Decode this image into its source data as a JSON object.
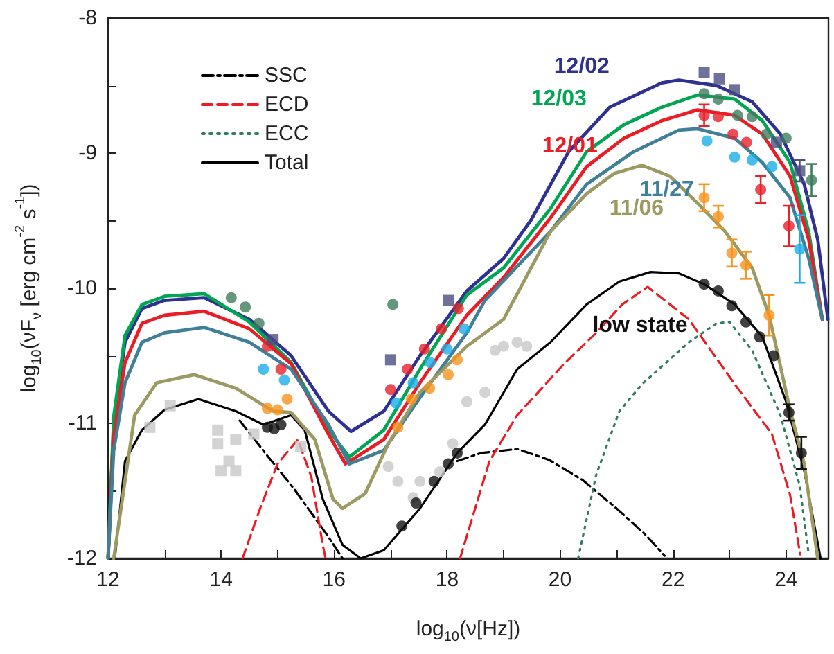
{
  "chart_data": {
    "type": "line",
    "xlabel": "log$_{10}$(ν[Hz])",
    "ylabel": "log$_{10}$(νF$_{ν}$ [erg cm$^{-2}$ s$^{-1}$])",
    "xlim": [
      12,
      24.75
    ],
    "ylim": [
      -12,
      -8
    ],
    "xticks": [
      12,
      {
        "value": 13,
        "label": null
      },
      14,
      {
        "value": 15,
        "label": null
      },
      16,
      {
        "value": 17,
        "label": null
      },
      18,
      {
        "value": 19,
        "label": null
      },
      20,
      {
        "value": 21,
        "label": null
      },
      22,
      {
        "value": 23,
        "label": null
      },
      24
    ],
    "yticks": [
      -12,
      {
        "value": -11.5,
        "label": null
      },
      -11,
      {
        "value": -10.5,
        "label": null
      },
      -10,
      {
        "value": -9.5,
        "label": null
      },
      -9,
      {
        "value": -8.5,
        "label": null
      },
      -8
    ],
    "grid": false,
    "legend": "top left",
    "annotations": [
      "low state"
    ],
    "series": [
      {
        "name": "SSC",
        "type": "line",
        "color": "#000000",
        "line_style": "dashdot",
        "x": [
          14.33,
          14.8,
          15.3,
          15.9,
          16.15,
          17.0,
          18.18,
          18.6,
          19.24,
          19.8,
          20.4,
          21.0,
          21.5,
          21.85
        ],
        "values": [
          -10.98,
          -11.23,
          -11.49,
          -11.84,
          -12.0,
          null,
          -11.28,
          -11.22,
          -11.19,
          -11.27,
          -11.42,
          -11.63,
          -11.82,
          -11.98
        ]
      },
      {
        "name": "ECD",
        "type": "line",
        "color": "#ed1c24",
        "line_style": "dashed",
        "x": [
          14.38,
          14.7,
          15.0,
          15.36,
          15.6,
          15.8,
          15.85,
          17.0,
          18.23,
          18.75,
          19.24,
          20.07,
          20.64,
          21.1,
          21.55,
          22.28,
          23.09,
          23.75,
          24.07,
          24.25
        ],
        "values": [
          -12,
          -11.62,
          -11.3,
          -11.12,
          -11.4,
          -11.9,
          -12,
          null,
          -12,
          -11.28,
          -10.94,
          -10.56,
          -10.33,
          -10.12,
          -9.99,
          -10.23,
          -10.71,
          -11.08,
          -11.53,
          -11.97
        ]
      },
      {
        "name": "ECC",
        "type": "line",
        "color": "#2e7d5e",
        "line_style": "dotted",
        "x": [
          20.32,
          20.64,
          21.05,
          21.45,
          22.28,
          22.77,
          23.0,
          23.4,
          23.9,
          24.24,
          24.4
        ],
        "values": [
          -12,
          -11.38,
          -10.91,
          -10.71,
          -10.4,
          -10.26,
          -10.25,
          -10.46,
          -10.94,
          -11.46,
          -11.97
        ]
      },
      {
        "name": "Total",
        "type": "line",
        "color": "#000000",
        "line_style": "solid",
        "x": [
          12.12,
          12.3,
          12.6,
          13.0,
          13.6,
          14.26,
          14.75,
          15.24,
          15.48,
          15.8,
          16.15,
          16.47,
          16.88,
          17.52,
          18.18,
          18.67,
          19.24,
          19.83,
          20.47,
          21.05,
          21.6,
          22.1,
          22.55,
          23.09,
          23.58,
          24.0,
          24.32,
          24.61
        ],
        "values": [
          -12,
          -11.28,
          -11.05,
          -10.9,
          -10.82,
          -10.91,
          -11.01,
          -10.94,
          -11.05,
          -11.56,
          -11.9,
          -12.0,
          -11.94,
          -11.63,
          -11.22,
          -11.01,
          -10.6,
          -10.4,
          -10.12,
          -9.95,
          -9.88,
          -9.89,
          -9.97,
          -10.12,
          -10.36,
          -10.84,
          -11.35,
          -12
        ]
      },
      {
        "name": "12/02",
        "color": "#2e3192",
        "x": [
          12.0,
          12.1,
          12.3,
          12.6,
          13.0,
          13.7,
          14.5,
          15.24,
          15.9,
          16.3,
          16.88,
          17.52,
          18.35,
          19.0,
          19.48,
          20.15,
          20.88,
          21.8,
          22.1,
          22.77,
          23.4,
          23.9,
          24.32,
          24.56,
          24.74
        ],
        "values": [
          -12,
          -11.0,
          -10.4,
          -10.15,
          -10.09,
          -10.07,
          -10.23,
          -10.5,
          -10.91,
          -11.06,
          -10.91,
          -10.5,
          -10.02,
          -9.78,
          -9.5,
          -8.99,
          -8.66,
          -8.48,
          -8.46,
          -8.5,
          -8.62,
          -8.86,
          -9.23,
          -9.64,
          -10.23
        ]
      },
      {
        "name": "12/03",
        "color": "#00a651",
        "x": [
          12.0,
          12.1,
          12.3,
          12.6,
          13.0,
          13.7,
          14.5,
          15.24,
          15.9,
          16.27,
          16.88,
          17.52,
          18.35,
          19.0,
          19.83,
          20.47,
          21.13,
          21.8,
          22.43,
          23.09,
          23.58,
          24.07,
          24.4,
          24.64
        ],
        "values": [
          -12,
          -10.95,
          -10.35,
          -10.12,
          -10.06,
          -10.04,
          -10.25,
          -10.55,
          -11.05,
          -11.25,
          -11.05,
          -10.6,
          -10.05,
          -9.85,
          -9.41,
          -8.99,
          -8.79,
          -8.66,
          -8.57,
          -8.6,
          -8.76,
          -9.07,
          -9.58,
          -10.23
        ]
      },
      {
        "name": "12/01",
        "color": "#ed1c24",
        "x": [
          12.0,
          12.1,
          12.3,
          12.6,
          13.0,
          13.7,
          14.5,
          15.24,
          15.9,
          16.2,
          16.88,
          17.52,
          18.35,
          19.0,
          19.83,
          20.47,
          21.13,
          21.8,
          22.43,
          23.09,
          23.58,
          24.07,
          24.4,
          24.64
        ],
        "values": [
          -12,
          -11.1,
          -10.55,
          -10.26,
          -10.2,
          -10.17,
          -10.3,
          -10.56,
          -11.08,
          -11.3,
          -11.12,
          -10.7,
          -10.2,
          -9.92,
          -9.48,
          -9.1,
          -8.89,
          -8.76,
          -8.68,
          -8.72,
          -8.86,
          -9.17,
          -9.64,
          -10.23
        ]
      },
      {
        "name": "11/27",
        "color": "#3f7f98",
        "x": [
          12.0,
          12.1,
          12.3,
          12.6,
          13.0,
          13.7,
          14.5,
          15.24,
          15.9,
          16.27,
          16.88,
          17.52,
          18.35,
          18.67,
          19.83,
          20.47,
          21.3,
          22.1,
          22.43,
          23.09,
          23.58,
          24.07,
          24.4,
          24.64
        ],
        "values": [
          -12,
          -11.2,
          -10.7,
          -10.4,
          -10.33,
          -10.29,
          -10.4,
          -10.6,
          -11.01,
          -11.3,
          -11.2,
          -10.81,
          -10.33,
          -10.09,
          -9.58,
          -9.23,
          -8.99,
          -8.83,
          -8.82,
          -8.89,
          -9.07,
          -9.33,
          -9.78,
          -10.23
        ]
      },
      {
        "name": "11/06",
        "color": "#9c9a62",
        "x": [
          12.1,
          12.47,
          12.86,
          13.52,
          14.26,
          14.92,
          15.24,
          15.66,
          15.98,
          16.15,
          16.55,
          16.96,
          17.52,
          18.35,
          19.0,
          19.83,
          20.47,
          20.96,
          21.45,
          21.94,
          22.43,
          22.92,
          23.4,
          23.7,
          24.07,
          24.32,
          24.56
        ],
        "values": [
          -12,
          -10.94,
          -10.7,
          -10.64,
          -10.74,
          -10.91,
          -10.92,
          -11.12,
          -11.56,
          -11.63,
          -11.52,
          -11.15,
          -10.77,
          -10.43,
          -10.23,
          -9.58,
          -9.3,
          -9.15,
          -9.09,
          -9.17,
          -9.37,
          -9.58,
          -9.85,
          -10.2,
          -10.9,
          -11.3,
          -12
        ]
      },
      {
        "type": "scatter",
        "color": "#c8c8c8",
        "marker": "square",
        "x": [
          12.74,
          13.1,
          13.94,
          13.94,
          14.26,
          14.58,
          14.14,
          14.26,
          14.0,
          15.41
        ],
        "values": [
          -11.03,
          -10.87,
          -11.05,
          -11.15,
          -11.12,
          -11.08,
          -11.28,
          -11.35,
          -11.35,
          -11.17
        ]
      },
      {
        "type": "scatter",
        "color": "#c8c8c8",
        "marker": "circle",
        "x": [
          16.96,
          17.13,
          17.4,
          17.52,
          17.87,
          18.1,
          18.35,
          18.67,
          18.85,
          19.0,
          19.24,
          19.41
        ],
        "values": [
          -11.32,
          -11.43,
          -11.55,
          -11.43,
          -11.36,
          -11.15,
          -10.84,
          -10.77,
          -10.46,
          -10.43,
          -10.4,
          -10.43
        ]
      },
      {
        "type": "scatter",
        "color": "#f7941d",
        "marker": "circle",
        "x": [
          14.82,
          15.0,
          15.17,
          17.13,
          17.37,
          17.69,
          18.02,
          18.18,
          22.55,
          22.8,
          23.04,
          23.29,
          23.7
        ],
        "values": [
          -10.89,
          -10.9,
          -10.82,
          -11.03,
          -10.82,
          -10.74,
          -10.64,
          -10.53,
          -9.33,
          -9.47,
          -9.74,
          -9.83,
          -10.2
        ],
        "errors": [
          null,
          null,
          null,
          null,
          null,
          null,
          null,
          null,
          0.1,
          0.08,
          0.1,
          0.1,
          0.15
        ]
      },
      {
        "type": "scatter",
        "color": "#1aaee8",
        "marker": "circle",
        "x": [
          14.75,
          15.12,
          17.1,
          17.4,
          17.7,
          18.0,
          18.3,
          22.6,
          23.09,
          23.4,
          23.75,
          24.24
        ],
        "values": [
          -10.6,
          -10.68,
          -10.85,
          -10.7,
          -10.55,
          -10.45,
          -10.3,
          -8.91,
          -9.03,
          -9.05,
          -9.1,
          -9.71
        ],
        "errors": [
          null,
          null,
          null,
          null,
          null,
          null,
          null,
          null,
          null,
          null,
          null,
          0.25
        ]
      },
      {
        "type": "scatter",
        "color": "#e8202a",
        "marker": "circle",
        "x": [
          14.82,
          15.06,
          17.0,
          17.3,
          17.6,
          17.9,
          18.2,
          22.55,
          22.8,
          23.06,
          23.3,
          23.55,
          24.05
        ],
        "values": [
          -10.43,
          -10.6,
          -10.75,
          -10.6,
          -10.45,
          -10.3,
          -10.15,
          -8.72,
          -8.73,
          -8.86,
          -8.92,
          -9.27,
          -9.54
        ],
        "errors": [
          null,
          null,
          null,
          null,
          null,
          null,
          null,
          0.08,
          null,
          null,
          null,
          0.1,
          0.15
        ]
      },
      {
        "type": "scatter",
        "color": "#3e7d5e",
        "marker": "circle",
        "x": [
          14.18,
          14.43,
          14.67,
          17.04,
          22.55,
          22.8,
          23.14,
          23.4,
          23.65,
          24.0,
          24.45
        ],
        "values": [
          -10.07,
          -10.14,
          -10.26,
          -10.12,
          -8.56,
          -8.6,
          -8.72,
          -8.73,
          -8.86,
          -8.89,
          -9.2
        ],
        "errors": [
          null,
          null,
          null,
          null,
          null,
          null,
          null,
          null,
          null,
          null,
          0.12
        ]
      },
      {
        "type": "scatter",
        "color": "#4a4e80",
        "marker": "square",
        "x": [
          14.92,
          17.0,
          18.02,
          22.55,
          22.82,
          23.09,
          23.83,
          24.24
        ],
        "values": [
          -10.38,
          -10.53,
          -10.09,
          -8.4,
          -8.45,
          -8.53,
          -8.92,
          -9.13
        ],
        "errors": [
          null,
          null,
          null,
          null,
          null,
          null,
          null,
          0.08
        ]
      },
      {
        "type": "scatter",
        "color": "#111111",
        "marker": "circle",
        "x": [
          14.82,
          14.94,
          15.06,
          17.2,
          17.45,
          17.77,
          18.02,
          18.18,
          22.55,
          22.8,
          23.04,
          23.29,
          23.53,
          23.78,
          24.05,
          24.27
        ],
        "values": [
          -11.03,
          -11.04,
          -11.01,
          -11.76,
          -11.59,
          -11.43,
          -11.3,
          -11.22,
          -9.97,
          -10.02,
          -10.13,
          -10.25,
          -10.36,
          -10.5,
          -10.92,
          -11.22
        ],
        "errors": [
          null,
          null,
          null,
          null,
          null,
          null,
          null,
          null,
          null,
          null,
          null,
          null,
          null,
          null,
          0.06,
          0.12
        ]
      }
    ]
  }
}
